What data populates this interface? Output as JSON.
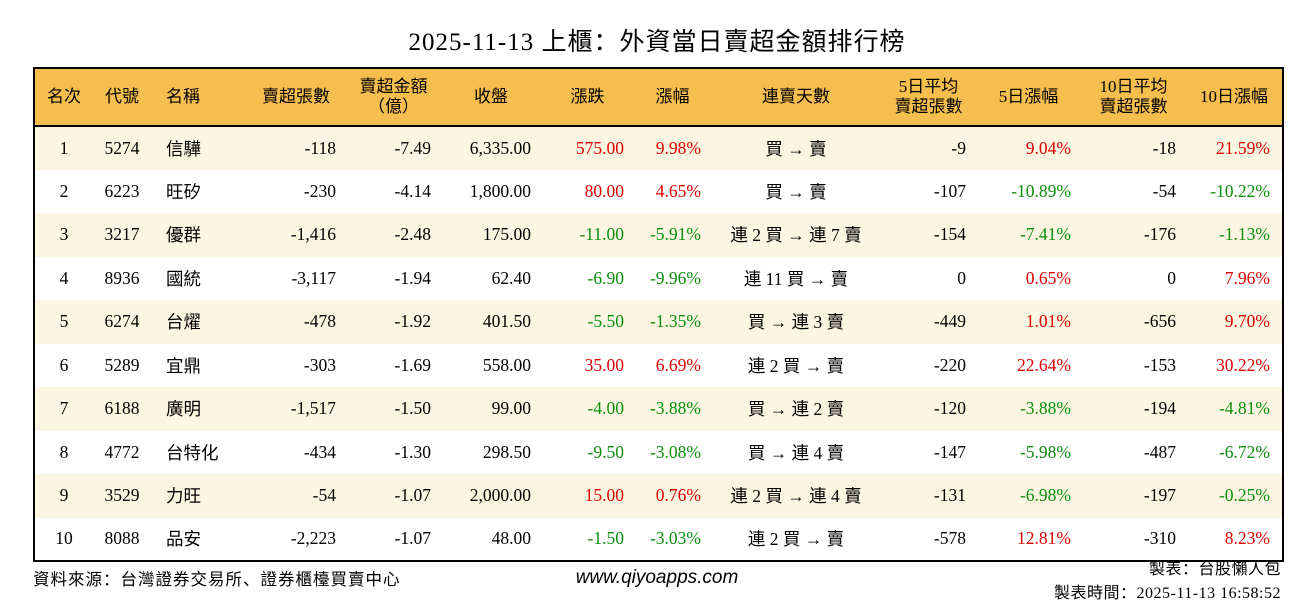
{
  "page": {
    "title": "2025-11-13 上櫃：外資當日賣超金額排行榜",
    "colors": {
      "header_bg": "#F6BE4E",
      "row_alt_bg": "#FCF5E2",
      "up_red": "#DC0000",
      "down_green": "#0B8E0B",
      "border": "#000000"
    }
  },
  "table": {
    "columns": [
      {
        "id": "rank",
        "label": "名次"
      },
      {
        "id": "code",
        "label": "代號"
      },
      {
        "id": "name",
        "label": "名稱"
      },
      {
        "id": "net_sell_lots",
        "label": "賣超張數"
      },
      {
        "id": "net_sell_amount",
        "label": "賣超金額\n（億）"
      },
      {
        "id": "close",
        "label": "收盤"
      },
      {
        "id": "change",
        "label": "漲跌"
      },
      {
        "id": "change_pct",
        "label": "漲幅"
      },
      {
        "id": "streak",
        "label": "連賣天數"
      },
      {
        "id": "avg5_net_sell",
        "label": "5日平均\n賣超張數"
      },
      {
        "id": "pct_5d",
        "label": "5日漲幅"
      },
      {
        "id": "avg10_net_sell",
        "label": "10日平均\n賣超張數"
      },
      {
        "id": "pct_10d",
        "label": "10日漲幅"
      }
    ],
    "signed_color_columns": [
      6,
      7,
      10,
      12
    ],
    "rows": [
      [
        "1",
        "5274",
        "信驊",
        "-118",
        "-7.49",
        "6,335.00",
        "575.00",
        "9.98%",
        "買 → 賣",
        "-9",
        "9.04%",
        "-18",
        "21.59%"
      ],
      [
        "2",
        "6223",
        "旺矽",
        "-230",
        "-4.14",
        "1,800.00",
        "80.00",
        "4.65%",
        "買 → 賣",
        "-107",
        "-10.89%",
        "-54",
        "-10.22%"
      ],
      [
        "3",
        "3217",
        "優群",
        "-1,416",
        "-2.48",
        "175.00",
        "-11.00",
        "-5.91%",
        "連 2 買 → 連 7 賣",
        "-154",
        "-7.41%",
        "-176",
        "-1.13%"
      ],
      [
        "4",
        "8936",
        "國統",
        "-3,117",
        "-1.94",
        "62.40",
        "-6.90",
        "-9.96%",
        "連 11 買 → 賣",
        "0",
        "0.65%",
        "0",
        "7.96%"
      ],
      [
        "5",
        "6274",
        "台燿",
        "-478",
        "-1.92",
        "401.50",
        "-5.50",
        "-1.35%",
        "買 → 連 3 賣",
        "-449",
        "1.01%",
        "-656",
        "9.70%"
      ],
      [
        "6",
        "5289",
        "宜鼎",
        "-303",
        "-1.69",
        "558.00",
        "35.00",
        "6.69%",
        "連 2 買 → 賣",
        "-220",
        "22.64%",
        "-153",
        "30.22%"
      ],
      [
        "7",
        "6188",
        "廣明",
        "-1,517",
        "-1.50",
        "99.00",
        "-4.00",
        "-3.88%",
        "買 → 連 2 賣",
        "-120",
        "-3.88%",
        "-194",
        "-4.81%"
      ],
      [
        "8",
        "4772",
        "台特化",
        "-434",
        "-1.30",
        "298.50",
        "-9.50",
        "-3.08%",
        "買 → 連 4 賣",
        "-147",
        "-5.98%",
        "-487",
        "-6.72%"
      ],
      [
        "9",
        "3529",
        "力旺",
        "-54",
        "-1.07",
        "2,000.00",
        "15.00",
        "0.76%",
        "連 2 買 → 連 4 賣",
        "-131",
        "-6.98%",
        "-197",
        "-0.25%"
      ],
      [
        "10",
        "8088",
        "品安",
        "-2,223",
        "-1.07",
        "48.00",
        "-1.50",
        "-3.03%",
        "連 2 買 → 賣",
        "-578",
        "12.81%",
        "-310",
        "8.23%"
      ]
    ]
  },
  "footer": {
    "source": "資料來源：台灣證券交易所、證券櫃檯買賣中心",
    "website": "www.qiyoapps.com",
    "maker": "製表：台股懶人包",
    "generated_at": "製表時間：2025-11-13 16:58:52"
  },
  "chart_data": {
    "type": "table",
    "title": "2025-11-13 上櫃：外資當日賣超金額排行榜",
    "columns": [
      "名次",
      "代號",
      "名稱",
      "賣超張數",
      "賣超金額（億）",
      "收盤",
      "漲跌",
      "漲幅",
      "連賣天數",
      "5日平均賣超張數",
      "5日漲幅",
      "10日平均賣超張數",
      "10日漲幅"
    ],
    "rows": [
      [
        "1",
        "5274",
        "信驊",
        -118,
        -7.49,
        6335.0,
        575.0,
        "9.98%",
        "買 → 賣",
        -9,
        "9.04%",
        -18,
        "21.59%"
      ],
      [
        "2",
        "6223",
        "旺矽",
        -230,
        -4.14,
        1800.0,
        80.0,
        "4.65%",
        "買 → 賣",
        -107,
        "-10.89%",
        -54,
        "-10.22%"
      ],
      [
        "3",
        "3217",
        "優群",
        -1416,
        -2.48,
        175.0,
        -11.0,
        "-5.91%",
        "連 2 買 → 連 7 賣",
        -154,
        "-7.41%",
        -176,
        "-1.13%"
      ],
      [
        "4",
        "8936",
        "國統",
        -3117,
        -1.94,
        62.4,
        -6.9,
        "-9.96%",
        "連 11 買 → 賣",
        0,
        "0.65%",
        0,
        "7.96%"
      ],
      [
        "5",
        "6274",
        "台燿",
        -478,
        -1.92,
        401.5,
        -5.5,
        "-1.35%",
        "買 → 連 3 賣",
        -449,
        "1.01%",
        -656,
        "9.70%"
      ],
      [
        "6",
        "5289",
        "宜鼎",
        -303,
        -1.69,
        558.0,
        35.0,
        "6.69%",
        "連 2 買 → 賣",
        -220,
        "22.64%",
        -153,
        "30.22%"
      ],
      [
        "7",
        "6188",
        "廣明",
        -1517,
        -1.5,
        99.0,
        -4.0,
        "-3.88%",
        "買 → 連 2 賣",
        -120,
        "-3.88%",
        -194,
        "-4.81%"
      ],
      [
        "8",
        "4772",
        "台特化",
        -434,
        -1.3,
        298.5,
        -9.5,
        "-3.08%",
        "買 → 連 4 賣",
        -147,
        "-5.98%",
        -487,
        "-6.72%"
      ],
      [
        "9",
        "3529",
        "力旺",
        -54,
        -1.07,
        2000.0,
        15.0,
        "0.76%",
        "連 2 買 → 連 4 賣",
        -131,
        "-6.98%",
        -197,
        "-0.25%"
      ],
      [
        "10",
        "8088",
        "品安",
        -2223,
        -1.07,
        48.0,
        -1.5,
        "-3.03%",
        "連 2 買 → 賣",
        -578,
        "12.81%",
        -310,
        "8.23%"
      ]
    ],
    "notes": "red = positive (up), green = negative (down) in 漲跌/漲幅/5日漲幅/10日漲幅 columns"
  }
}
